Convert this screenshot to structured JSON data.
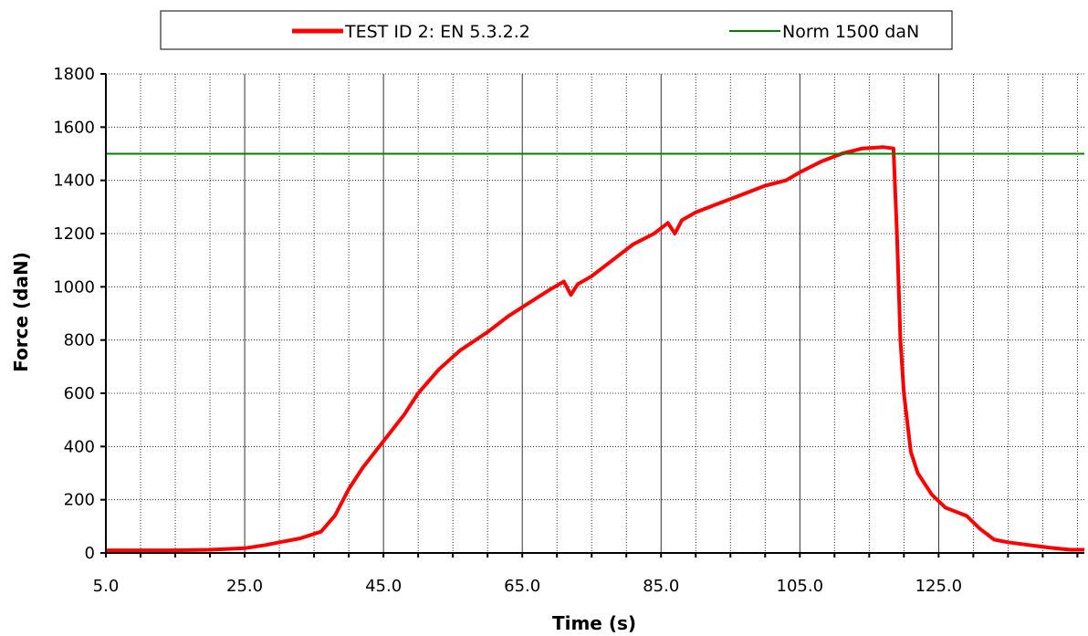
{
  "chart_data": {
    "type": "line",
    "xlabel": "Time (s)",
    "ylabel": "Force (daN)",
    "xlim": [
      5.0,
      146.0
    ],
    "ylim": [
      0,
      1800
    ],
    "x_ticks": [
      "5.0",
      "25.0",
      "45.0",
      "65.0",
      "85.0",
      "105.0",
      "125.0"
    ],
    "x_tick_values": [
      5,
      25,
      45,
      65,
      85,
      105,
      125
    ],
    "y_ticks": [
      0,
      200,
      400,
      600,
      800,
      1000,
      1200,
      1400,
      1600,
      1800
    ],
    "grid": true,
    "legend_position": "top",
    "series": [
      {
        "name": "TEST ID 2: EN 5.3.2.2",
        "color": "#ff0000",
        "x": [
          5,
          10,
          15,
          20,
          25,
          28,
          30,
          33,
          36,
          38,
          40,
          42,
          45,
          48,
          50,
          53,
          56,
          60,
          63,
          66,
          69,
          71,
          72,
          73,
          75,
          78,
          81,
          84,
          86,
          87,
          88,
          90,
          93,
          96,
          100,
          103,
          105,
          108,
          111,
          114,
          117,
          118.5,
          119,
          119.5,
          120,
          121,
          122,
          124,
          126,
          129,
          131,
          133,
          135,
          138,
          141,
          144,
          146
        ],
        "y": [
          10,
          10,
          10,
          12,
          18,
          30,
          40,
          55,
          80,
          140,
          240,
          320,
          420,
          520,
          600,
          690,
          760,
          830,
          890,
          940,
          990,
          1020,
          970,
          1010,
          1040,
          1100,
          1160,
          1200,
          1240,
          1200,
          1250,
          1280,
          1310,
          1340,
          1380,
          1400,
          1430,
          1470,
          1500,
          1520,
          1525,
          1520,
          1200,
          800,
          600,
          380,
          300,
          220,
          170,
          140,
          90,
          50,
          40,
          30,
          20,
          12,
          12
        ]
      },
      {
        "name": "Norm 1500 daN",
        "color": "#008000",
        "x": [
          5,
          146
        ],
        "y": [
          1500,
          1500
        ]
      }
    ]
  }
}
